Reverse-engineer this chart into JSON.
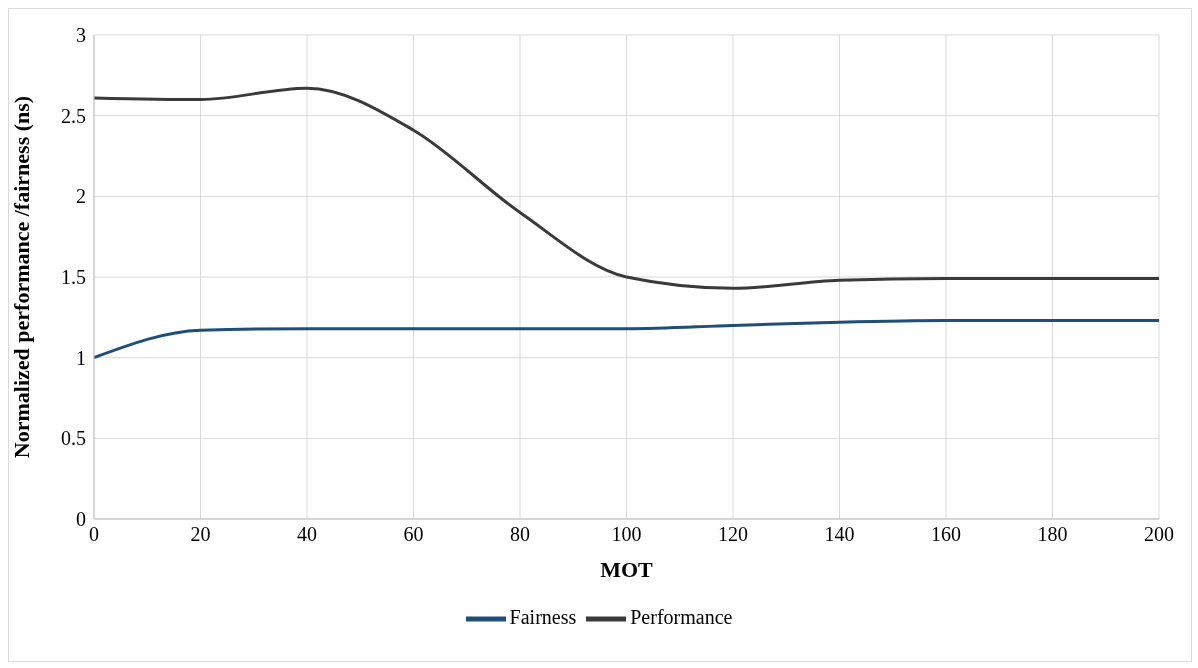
{
  "chart_data": {
    "type": "line",
    "xlabel": "MOT",
    "ylabel": "Normalized performance /fairness (ns)",
    "x": [
      0,
      20,
      40,
      60,
      80,
      100,
      120,
      140,
      160,
      180,
      200
    ],
    "series": [
      {
        "name": "Performance",
        "color": "#3a3a3a",
        "values": [
          2.61,
          2.6,
          2.67,
          2.41,
          1.9,
          1.5,
          1.43,
          1.48,
          1.49,
          1.49,
          1.49
        ]
      },
      {
        "name": "Fairness",
        "color": "#1f4e79",
        "values": [
          1.0,
          1.17,
          1.18,
          1.18,
          1.18,
          1.18,
          1.2,
          1.22,
          1.23,
          1.23,
          1.23
        ]
      }
    ],
    "xlim": [
      0,
      200
    ],
    "xticks": [
      0,
      20,
      40,
      60,
      80,
      100,
      120,
      140,
      160,
      180,
      200
    ],
    "ylim": [
      0,
      3
    ],
    "yticks": [
      0,
      0.5,
      1,
      1.5,
      2,
      2.5,
      3
    ],
    "grid": true,
    "legend": "bottom",
    "marker": "none",
    "line_style": "solid"
  }
}
